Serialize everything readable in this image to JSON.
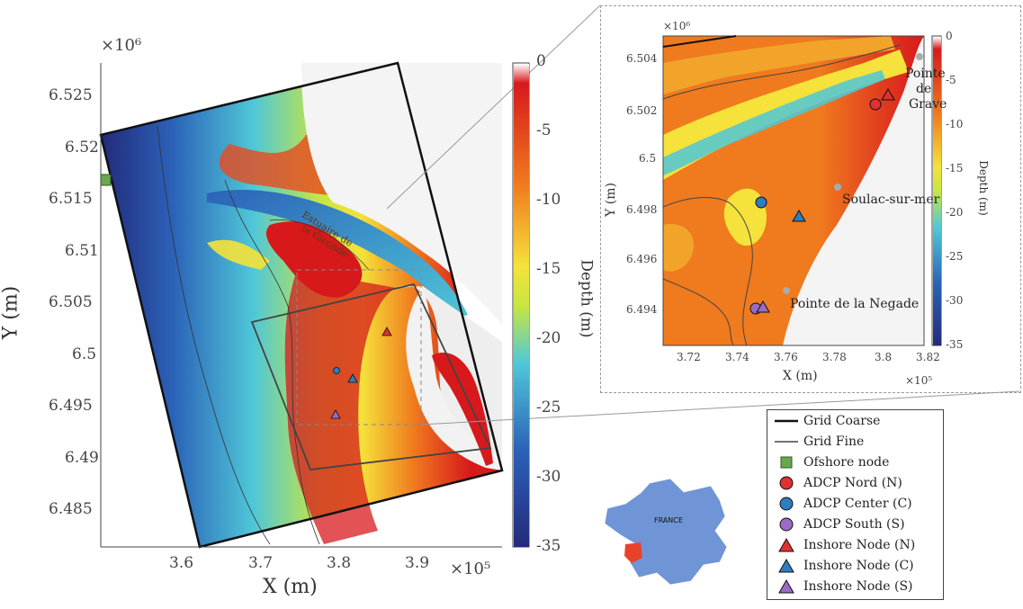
{
  "main_map": {
    "x_ticks": [
      "3.6",
      "3.7",
      "3.8",
      "3.9"
    ],
    "y_ticks": [
      "6.525",
      "6.52",
      "6.515",
      "6.51",
      "6.505",
      "6.5",
      "6.495",
      "6.49",
      "6.485"
    ],
    "x_label": "X (m)",
    "y_label": "Y (m)",
    "x_multiplier": "×10⁵",
    "y_multiplier": "×10⁶",
    "estuary_label_line1": "Estuaire de",
    "estuary_label_line2": "la Gironde"
  },
  "colorbar": {
    "label": "Depth (m)",
    "ticks": [
      "0",
      "-5",
      "-10",
      "-15",
      "-20",
      "-25",
      "-30",
      "-35"
    ],
    "colors": [
      "#ffffff",
      "#d7191c",
      "#f07a1e",
      "#f5e23a",
      "#4fc7d8",
      "#2b62b8",
      "#242a7a"
    ]
  },
  "inset_map": {
    "x_ticks": [
      "3.72",
      "3.74",
      "3.76",
      "3.78",
      "3.8",
      "3.82"
    ],
    "y_ticks": [
      "6.504",
      "6.502",
      "6.5",
      "6.498",
      "6.496",
      "6.494"
    ],
    "x_label": "X (m)",
    "y_label": "Y (m)",
    "x_multiplier": "×10⁵",
    "y_multiplier": "×10⁶",
    "cb_label": "Depth (m)",
    "cb_ticks": [
      "0",
      "-5",
      "-10",
      "-15",
      "-20",
      "-25",
      "-30",
      "-35"
    ],
    "places": {
      "pointe_de_grave_1": "Pointe",
      "pointe_de_grave_2": "de",
      "pointe_de_grave_3": "Grave",
      "soulac": "Soulac-sur-mer",
      "negade": "Pointe de la Negade"
    }
  },
  "legend": {
    "items": [
      {
        "label": "Grid Coarse",
        "symbol": "line-thick",
        "color": "#111111"
      },
      {
        "label": "Grid Fine",
        "symbol": "line-thin",
        "color": "#444444"
      },
      {
        "label": "Ofshore node",
        "symbol": "square",
        "color": "#6aa84f"
      },
      {
        "label": "ADCP Nord (N)",
        "symbol": "circle",
        "color": "#e03030"
      },
      {
        "label": "ADCP Center (C)",
        "symbol": "circle",
        "color": "#2e7dc0"
      },
      {
        "label": "ADCP South (S)",
        "symbol": "circle",
        "color": "#9a6cc4"
      },
      {
        "label": "Inshore Node (N)",
        "symbol": "triangle",
        "color": "#e03030"
      },
      {
        "label": "Inshore Node (C)",
        "symbol": "triangle",
        "color": "#2e7dc0"
      },
      {
        "label": "Inshore Node (S)",
        "symbol": "triangle",
        "color": "#9a6cc4"
      }
    ]
  },
  "locator": {
    "label": "FRANCE",
    "land_color": "#6f95d6",
    "highlight_color": "#e8432a"
  }
}
